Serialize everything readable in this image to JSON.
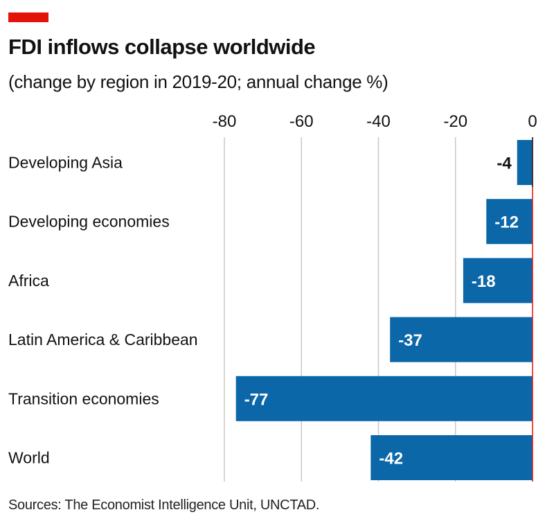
{
  "header": {
    "title": "FDI inflows collapse worldwide",
    "subtitle": "(change by region in 2019-20; annual change %)"
  },
  "footer": {
    "source": "Sources: The Economist Intelligence Unit, UNCTAD."
  },
  "colors": {
    "bar": "#0b67a8",
    "accent": "#e3120b",
    "grid": "#c8c8c8"
  },
  "chart_data": {
    "type": "bar",
    "orientation": "horizontal",
    "title": "FDI inflows collapse worldwide",
    "subtitle": "(change by region in 2019-20; annual change %)",
    "categories": [
      "Developing Asia",
      "Developing economies",
      "Africa",
      "Latin America & Caribbean",
      "Transition economies",
      "World"
    ],
    "values": [
      -4,
      -12,
      -18,
      -37,
      -77,
      -42
    ],
    "data_labels": [
      "-4",
      "-12",
      "-18",
      "-37",
      "-77",
      "-42"
    ],
    "xlim": [
      -80,
      0
    ],
    "xticks": [
      -80,
      -60,
      -40,
      -20,
      0
    ],
    "xtick_labels": [
      "-80",
      "-60",
      "-40",
      "-20",
      "0"
    ],
    "axis_position": "top",
    "grid": true
  }
}
